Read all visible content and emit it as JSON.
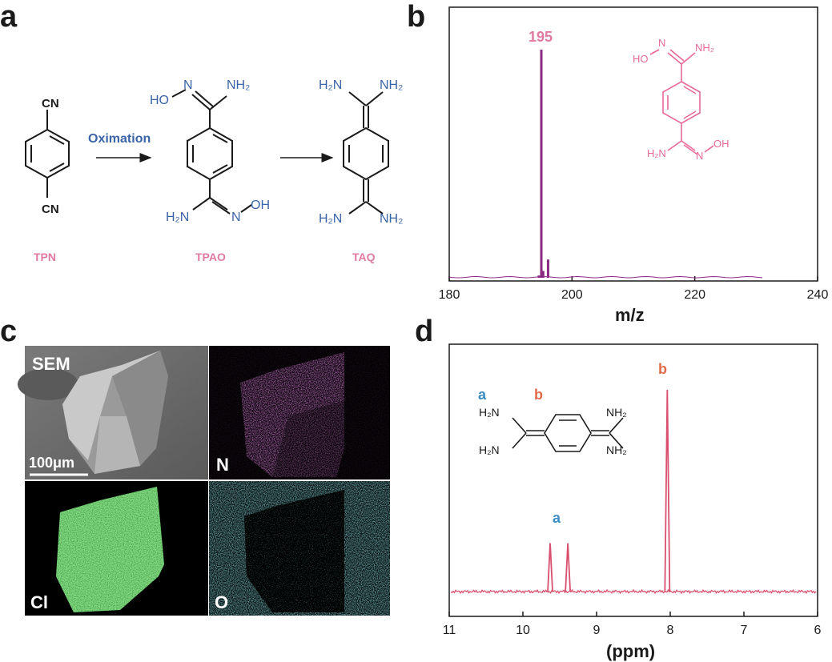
{
  "panels": {
    "a": {
      "label": "a",
      "compounds": [
        "TPN",
        "TPAO",
        "TAQ"
      ],
      "arrow_label": "Oximation",
      "atoms": {
        "cn": "CN",
        "ho": "HO",
        "oh": "OH",
        "n": "N",
        "nh2": "NH₂",
        "h2n": "H₂N"
      }
    },
    "b": {
      "label": "b",
      "peak_label": "195",
      "xlabel": "m/z",
      "atoms": {
        "ho": "HO",
        "oh": "OH",
        "n": "N",
        "nh2": "NH₂",
        "h2n": "H₂N"
      }
    },
    "c": {
      "label": "c",
      "maps": [
        "SEM",
        "N",
        "Cl",
        "O"
      ],
      "scale_bar": "100μm"
    },
    "d": {
      "label": "d",
      "xlabel": "(ppm)",
      "peak_a": "a",
      "peak_b": "b",
      "struct_a": "a",
      "struct_b": "b",
      "atoms": {
        "nh2": "NH₂",
        "h2n": "H₂N"
      }
    }
  },
  "colors": {
    "ms_line": "#8b2a82",
    "nmr_line": "#d94f6e",
    "blue_label": "#3a8ec4",
    "orange_label": "#e06a4a",
    "pink": "#e8699a",
    "sem_bg": "#6e6e6e",
    "n_map": "#c438c4",
    "cl_map": "#3bb23b",
    "o_map": "#3fb8c0"
  },
  "chart_data": [
    {
      "type": "line",
      "panel": "b",
      "xlabel": "m/z",
      "xlim": [
        180,
        240
      ],
      "ticks": [
        180,
        200,
        220,
        240
      ],
      "peaks": [
        {
          "x": 195,
          "y": 1.0
        },
        {
          "x": 196.1,
          "y": 0.08
        },
        {
          "x": 195.3,
          "y": 0.03
        },
        {
          "x": 194.6,
          "y": 0.01
        }
      ],
      "annotation": "195"
    },
    {
      "type": "line",
      "panel": "d",
      "xlabel": "(ppm)",
      "xlim": [
        11,
        6
      ],
      "ticks": [
        11,
        10,
        9,
        8,
        7,
        6
      ],
      "peaks": [
        {
          "x": 9.63,
          "y": 0.24,
          "label": "a"
        },
        {
          "x": 9.39,
          "y": 0.24,
          "label": "a"
        },
        {
          "x": 8.04,
          "y": 1.0,
          "label": "b"
        }
      ]
    }
  ]
}
